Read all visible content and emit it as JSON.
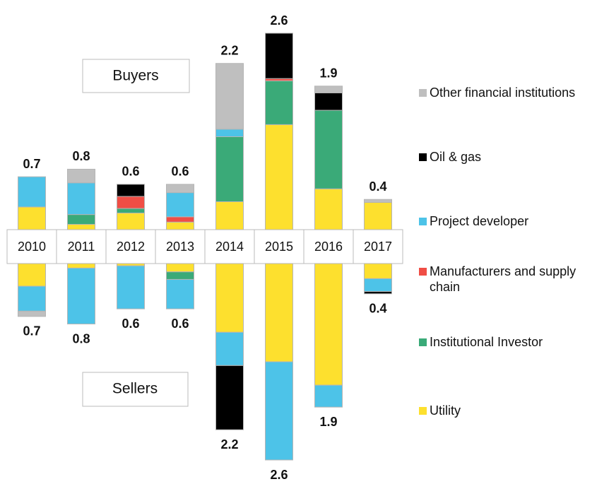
{
  "chart_data": {
    "type": "diverging-stacked-bar",
    "buyers_label": "Buyers",
    "sellers_label": "Sellers",
    "categories": [
      "2010",
      "2011",
      "2012",
      "2013",
      "2014",
      "2015",
      "2016",
      "2017"
    ],
    "ylim": [
      0,
      2.6
    ],
    "series": [
      {
        "name": "Utility",
        "color": "#fde02e",
        "buyers": [
          0.3,
          0.07,
          0.22,
          0.1,
          0.37,
          1.39,
          0.54,
          0.36
        ],
        "sellers": [
          0.3,
          0.06,
          0.03,
          0.11,
          0.91,
          1.3,
          1.61,
          0.2
        ]
      },
      {
        "name": "Institutional Investor",
        "color": "#3aaa78",
        "buyers": [
          0,
          0.13,
          0.06,
          0,
          0.86,
          0.58,
          1.04,
          0
        ],
        "sellers": [
          0,
          0,
          0,
          0.1,
          0,
          0,
          0,
          0
        ]
      },
      {
        "name": "Manufacturers and supply chain",
        "color": "#f04e45",
        "buyers": [
          0,
          0,
          0.16,
          0.07,
          0,
          0.03,
          0,
          0
        ],
        "sellers": [
          0,
          0,
          0,
          0,
          0,
          0,
          0,
          0
        ]
      },
      {
        "name": "Project developer",
        "color": "#4dc3e8",
        "buyers": [
          0.4,
          0.42,
          0,
          0.32,
          0.1,
          0,
          0,
          0
        ],
        "sellers": [
          0.33,
          0.74,
          0.57,
          0.39,
          0.44,
          1.3,
          0.29,
          0.17
        ]
      },
      {
        "name": "Oil & gas",
        "color": "#000000",
        "buyers": [
          0,
          0,
          0.16,
          0,
          0,
          0.6,
          0.23,
          0
        ],
        "sellers": [
          0,
          0,
          0,
          0,
          0.85,
          0,
          0,
          0.03
        ]
      },
      {
        "name": "Other financial institutions",
        "color": "#bfbfbf",
        "buyers": [
          0,
          0.18,
          0,
          0.11,
          0.87,
          0,
          0.09,
          0.04
        ],
        "sellers": [
          0.07,
          0,
          0,
          0,
          0,
          0,
          0,
          0
        ]
      }
    ],
    "buyer_totals": [
      0.7,
      0.8,
      0.6,
      0.6,
      2.2,
      2.6,
      1.9,
      0.4
    ],
    "seller_totals": [
      0.7,
      0.8,
      0.6,
      0.6,
      2.2,
      2.6,
      1.9,
      0.4
    ]
  }
}
